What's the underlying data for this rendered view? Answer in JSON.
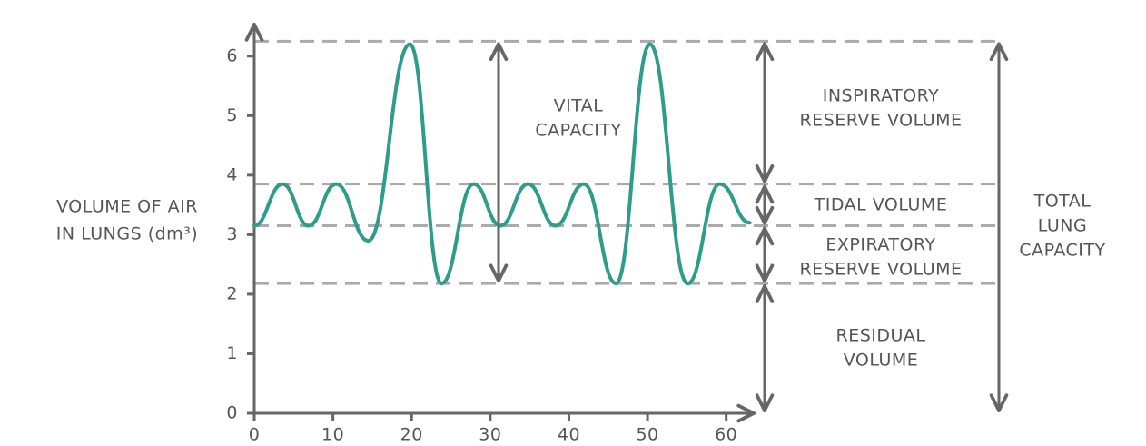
{
  "chart_data": {
    "type": "line",
    "y_label": [
      "VOLUME OF AIR",
      "IN LUNGS (dm³)"
    ],
    "x": [
      0,
      3.6,
      6.9,
      10.4,
      14.5,
      19.8,
      23.8,
      27.9,
      31.3,
      34.8,
      38.3,
      41.9,
      46,
      50.3,
      55.1,
      59.2,
      63
    ],
    "series": [
      {
        "color": "#2e9c8a",
        "values": [
          3.15,
          3.85,
          3.15,
          3.85,
          2.9,
          6.2,
          2.18,
          3.85,
          3.15,
          3.85,
          3.15,
          3.85,
          2.18,
          6.2,
          2.18,
          3.85,
          3.2
        ]
      }
    ],
    "xlim": [
      0,
      63.5
    ],
    "xticks": [
      0,
      10,
      20,
      30,
      40,
      50,
      60
    ],
    "ylim": [
      0,
      6.5
    ],
    "yticks": [
      0,
      1,
      2,
      3,
      4,
      5,
      6
    ],
    "grid": false,
    "reference_lines": [
      6.25,
      3.85,
      3.15,
      2.18
    ],
    "annotations": [
      {
        "lines": [
          "VITAL",
          "CAPACITY"
        ]
      },
      {
        "lines": [
          "INSPIRATORY",
          "RESERVE VOLUME"
        ]
      },
      {
        "lines": [
          "TIDAL VOLUME"
        ]
      },
      {
        "lines": [
          "EXPIRATORY",
          "RESERVE VOLUME"
        ]
      },
      {
        "lines": [
          "RESIDUAL",
          "VOLUME"
        ]
      },
      {
        "lines": [
          "TOTAL",
          "LUNG",
          "CAPACITY"
        ]
      }
    ]
  }
}
